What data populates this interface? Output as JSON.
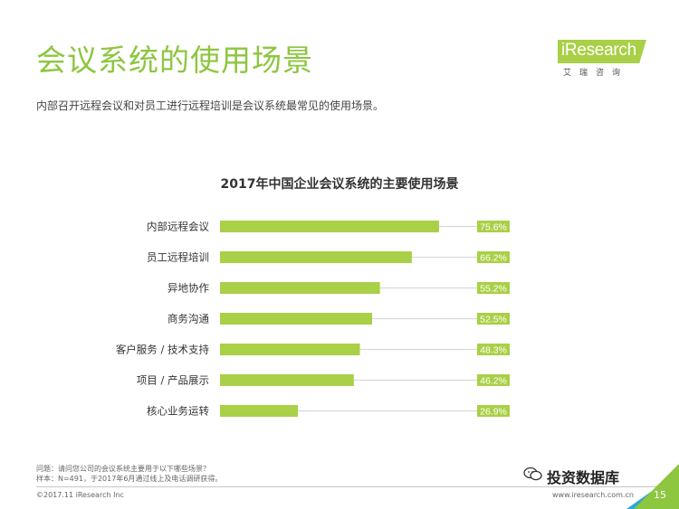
{
  "header": {
    "title": "会议系统的使用场景",
    "subtitle": "内部召开远程会议和对员工进行远程培训是会议系统最常见的使用场景。"
  },
  "logo": {
    "text": "iResearch",
    "cn": "艾瑞咨询"
  },
  "chart_data": {
    "type": "bar",
    "orientation": "horizontal",
    "title": "2017年中国企业会议系统的主要使用场景",
    "categories": [
      "内部远程会议",
      "员工远程培训",
      "异地协作",
      "商务沟通",
      "客户服务 / 技术支持",
      "项目 / 产品展示",
      "核心业务运转"
    ],
    "values": [
      75.6,
      66.2,
      55.2,
      52.5,
      48.3,
      46.2,
      26.9
    ],
    "value_labels": [
      "75.6%",
      "66.2%",
      "55.2%",
      "52.5%",
      "48.3%",
      "46.2%",
      "26.9%"
    ],
    "unit": "%",
    "xlim": [
      0,
      100
    ],
    "bar_color": "#a9d046",
    "track_color": "#d9d9d9",
    "label_bg_color": "#a9d046",
    "grid": false
  },
  "footer": {
    "question": "问题：请问您公司的会议系统主要用于以下哪些场景？",
    "sample": "样本：N=491，于2017年6月通过线上及电话调研获得。",
    "copyright": "©2017.11 iResearch Inc",
    "site": "www.iresearch.com.cn",
    "page": "15",
    "watermark": "投资数据库"
  },
  "colors": {
    "accent_green": "#8dc63f",
    "accent_blue": "#2aa7d8"
  }
}
